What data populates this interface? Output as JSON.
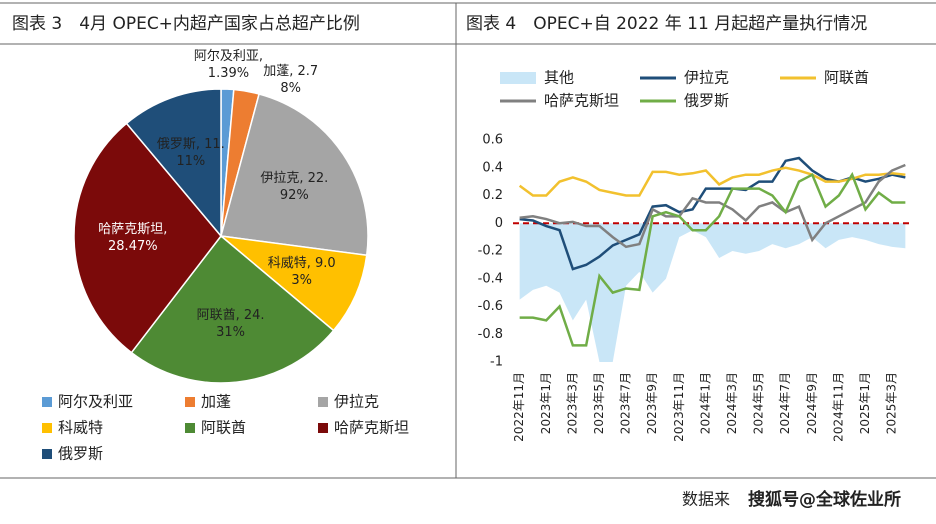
{
  "chart_data": [
    {
      "type": "pie",
      "title": "图表 3　4月 OPEC+内超产国家占总超产比例",
      "categories": [
        "阿尔及利亚",
        "加蓬",
        "伊拉克",
        "科威特",
        "阿联酋",
        "哈萨克斯坦",
        "俄罗斯"
      ],
      "values": [
        1.39,
        2.78,
        22.92,
        9.03,
        24.31,
        28.47,
        11.11
      ],
      "value_labels": [
        "阿尔及利亚, 1.39%",
        "加蓬, 2.78%",
        "伊拉克, 22.92%",
        "科威特, 9.03%",
        "阿联酋, 24.31%",
        "哈萨克斯坦, 28.47%",
        "俄罗斯, 11.11%"
      ],
      "colors": [
        "#5b9bd5",
        "#ed7d31",
        "#a5a5a5",
        "#ffc000",
        "#4e8a34",
        "#7b0a0a",
        "#1f4e79"
      ],
      "legend": "bottom"
    },
    {
      "type": "line",
      "title": "图表 4　OPEC+自 2022 年 11 月起超产量执行情况",
      "categories": [
        "2022年11月",
        null,
        "2023年1月",
        null,
        "2023年3月",
        null,
        "2023年5月",
        null,
        "2023年7月",
        null,
        "2023年9月",
        null,
        "2023年11月",
        null,
        "2024年1月",
        null,
        "2024年3月",
        null,
        "2024年5月",
        null,
        "2024年7月",
        null,
        "2024年9月",
        null,
        "2024年11月",
        null,
        "2025年1月",
        null,
        "2025年3月",
        null
      ],
      "series": [
        {
          "name": "其他",
          "kind": "area",
          "color": "#c9e6f7",
          "values": [
            -0.55,
            -0.48,
            -0.45,
            -0.5,
            -0.7,
            -0.55,
            -1.0,
            -1.0,
            -0.45,
            -0.35,
            -0.5,
            -0.4,
            -0.1,
            -0.05,
            -0.1,
            -0.25,
            -0.2,
            -0.22,
            -0.2,
            -0.15,
            -0.18,
            -0.15,
            -0.1,
            -0.18,
            -0.12,
            -0.1,
            -0.12,
            -0.15,
            -0.17,
            -0.18
          ]
        },
        {
          "name": "伊拉克",
          "color": "#1f4e79",
          "values": [
            0.03,
            0.02,
            -0.02,
            -0.05,
            -0.33,
            -0.3,
            -0.24,
            -0.16,
            -0.12,
            -0.08,
            0.12,
            0.13,
            0.08,
            0.1,
            0.25,
            0.25,
            0.25,
            0.24,
            0.3,
            0.3,
            0.45,
            0.47,
            0.38,
            0.32,
            0.3,
            0.33,
            0.3,
            0.32,
            0.35,
            0.33
          ]
        },
        {
          "name": "阿联酋",
          "color": "#f2c12e",
          "values": [
            0.27,
            0.2,
            0.2,
            0.3,
            0.33,
            0.3,
            0.24,
            0.22,
            0.2,
            0.2,
            0.37,
            0.37,
            0.35,
            0.36,
            0.38,
            0.28,
            0.33,
            0.35,
            0.35,
            0.38,
            0.4,
            0.38,
            0.35,
            0.3,
            0.3,
            0.32,
            0.35,
            0.35,
            0.36,
            0.35
          ]
        },
        {
          "name": "哈萨克斯坦",
          "color": "#808080",
          "values": [
            0.04,
            0.05,
            0.03,
            0.0,
            0.01,
            -0.02,
            -0.02,
            -0.1,
            -0.17,
            -0.15,
            0.1,
            0.05,
            0.05,
            0.18,
            0.15,
            0.15,
            0.1,
            0.02,
            0.12,
            0.15,
            0.08,
            0.12,
            -0.12,
            0.0,
            0.05,
            0.1,
            0.15,
            0.3,
            0.38,
            0.42
          ]
        },
        {
          "name": "俄罗斯",
          "color": "#70ad47",
          "values": [
            -0.68,
            -0.68,
            -0.7,
            -0.6,
            -0.88,
            -0.88,
            -0.38,
            -0.5,
            -0.47,
            -0.48,
            0.05,
            0.08,
            0.05,
            -0.05,
            -0.05,
            0.05,
            0.25,
            0.25,
            0.25,
            0.2,
            0.08,
            0.3,
            0.35,
            0.12,
            0.2,
            0.35,
            0.1,
            0.22,
            0.15,
            0.15
          ]
        }
      ],
      "ylim": [
        -1,
        0.6
      ],
      "yticks": [
        -1,
        -0.8,
        -0.6,
        -0.4,
        -0.2,
        0,
        0.2,
        0.4,
        0.6
      ],
      "grid": false,
      "zero_line_color": "#c00000",
      "legend": "top"
    }
  ],
  "source": "数据来",
  "watermark": "搜狐号@全球佐业所"
}
